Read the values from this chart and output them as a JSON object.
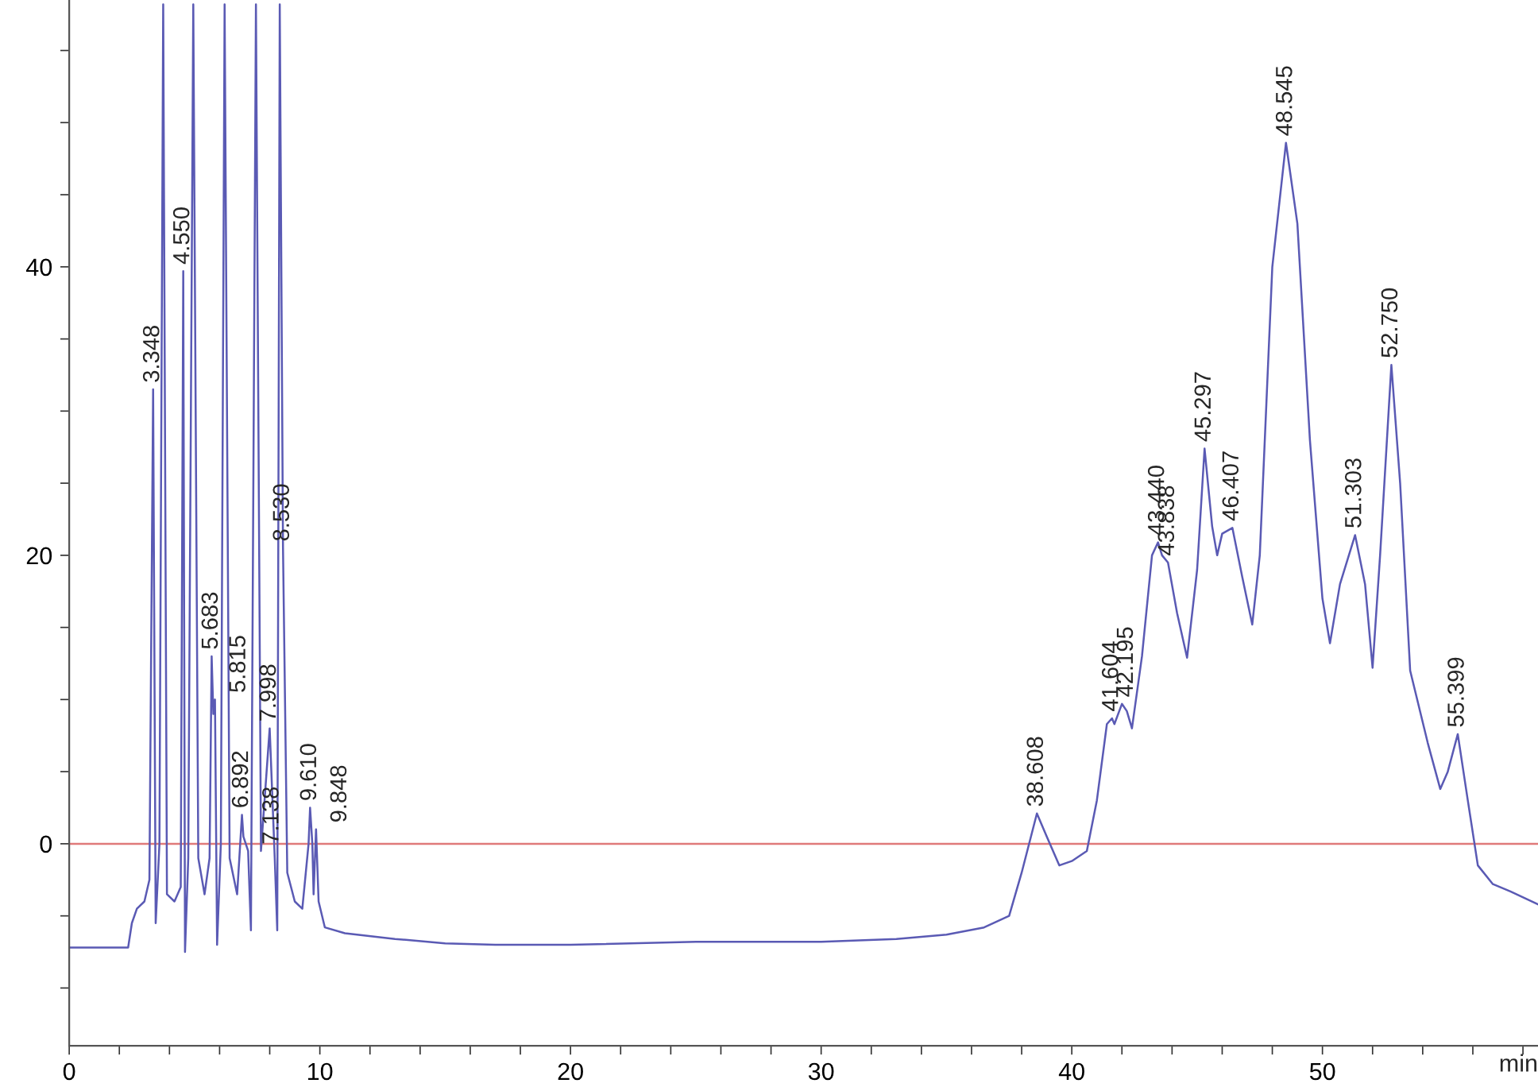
{
  "chart_data": {
    "type": "line",
    "xlabel": "min",
    "x": [
      0,
      2.35,
      2.5,
      2.7,
      3.0,
      3.2,
      3.348,
      3.45,
      3.6,
      3.75,
      3.9,
      4.2,
      4.45,
      4.55,
      4.62,
      4.75,
      4.95,
      5.15,
      5.4,
      5.6,
      5.683,
      5.75,
      5.815,
      5.9,
      6.05,
      6.2,
      6.4,
      6.7,
      6.892,
      6.95,
      7.138,
      7.25,
      7.45,
      7.65,
      7.998,
      8.2,
      8.3,
      8.4,
      8.53,
      8.7,
      9.0,
      9.3,
      9.55,
      9.61,
      9.7,
      9.75,
      9.848,
      9.95,
      10.2,
      11,
      13,
      15,
      17,
      20,
      25,
      30,
      33,
      35,
      36.5,
      37.5,
      38.0,
      38.608,
      39.0,
      39.5,
      40,
      40.6,
      41.0,
      41.4,
      41.604,
      41.7,
      42.0,
      42.195,
      42.4,
      42.8,
      43.2,
      43.44,
      43.6,
      43.838,
      44.2,
      44.6,
      45.0,
      45.297,
      45.6,
      45.8,
      46.0,
      46.407,
      46.8,
      47.2,
      47.5,
      48.0,
      48.545,
      49.0,
      49.5,
      50.0,
      50.3,
      50.7,
      51.303,
      51.7,
      52.0,
      52.3,
      52.75,
      53.1,
      53.5,
      54.2,
      54.7,
      55.0,
      55.399,
      55.8,
      56.2,
      56.8,
      57.5,
      58.6
    ],
    "series": [
      {
        "color": "#5a5ab4",
        "values": [
          -7.2,
          -7.2,
          -5.5,
          -4.5,
          -4.0,
          -2.5,
          31.5,
          -5.5,
          0,
          58.2,
          -3.5,
          -4,
          -3,
          39.7,
          -7.5,
          -1,
          58.2,
          -1,
          -3.5,
          -1,
          13,
          9,
          10,
          -7,
          0,
          58.2,
          -1,
          -3.5,
          2,
          0.5,
          -0.5,
          -6,
          58.2,
          -0.5,
          8,
          -1,
          -6,
          58.2,
          20.5,
          -2,
          -4,
          -4.5,
          0,
          2.5,
          0,
          -3.5,
          1,
          -4,
          -5.8,
          -6.2,
          -6.6,
          -6.9,
          -7.0,
          -7.0,
          -6.8,
          -6.8,
          -6.6,
          -6.3,
          -5.8,
          -5.0,
          -2,
          2.1,
          0.5,
          -1.5,
          -1.2,
          -0.5,
          3,
          8.3,
          8.7,
          8.3,
          9.7,
          9.2,
          8.0,
          13,
          20,
          20.9,
          20,
          19.5,
          16,
          12.9,
          19,
          27.4,
          22,
          20,
          21.5,
          21.9,
          18.5,
          15.2,
          20,
          40,
          48.6,
          43,
          28,
          17,
          13.9,
          18,
          21.4,
          18,
          12.2,
          20,
          33.2,
          25,
          12,
          7,
          3.8,
          5,
          7.6,
          3,
          -1.5,
          -2.8,
          -3.3,
          -4.2
        ]
      }
    ],
    "xlim": [
      0,
      58.6
    ],
    "ylim": [
      -14,
      58.5
    ],
    "xticks": [
      0,
      {
        "value": 2,
        "label": null
      },
      {
        "value": 4,
        "label": null
      },
      {
        "value": 6,
        "label": null
      },
      {
        "value": 8,
        "label": null
      },
      10,
      {
        "value": 12,
        "label": null
      },
      {
        "value": 14,
        "label": null
      },
      {
        "value": 16,
        "label": null
      },
      {
        "value": 18,
        "label": null
      },
      20,
      {
        "value": 22,
        "label": null
      },
      {
        "value": 24,
        "label": null
      },
      {
        "value": 26,
        "label": null
      },
      {
        "value": 28,
        "label": null
      },
      30,
      {
        "value": 32,
        "label": null
      },
      {
        "value": 34,
        "label": null
      },
      {
        "value": 36,
        "label": null
      },
      {
        "value": 38,
        "label": null
      },
      40,
      {
        "value": 42,
        "label": null
      },
      {
        "value": 44,
        "label": null
      },
      {
        "value": 46,
        "label": null
      },
      {
        "value": 48,
        "label": null
      },
      50,
      {
        "value": 52,
        "label": null
      },
      {
        "value": 54,
        "label": null
      },
      {
        "value": 56,
        "label": null
      },
      {
        "value": 58,
        "label": null
      }
    ],
    "yticks": [
      {
        "value": -10,
        "label": null
      },
      {
        "value": -5,
        "label": null
      },
      0,
      {
        "value": 5,
        "label": null
      },
      {
        "value": 10,
        "label": null
      },
      {
        "value": 15,
        "label": null
      },
      20,
      {
        "value": 25,
        "label": null
      },
      {
        "value": 30,
        "label": null
      },
      {
        "value": 35,
        "label": null
      },
      40,
      {
        "value": 45,
        "label": null
      },
      {
        "value": 50,
        "label": null
      },
      {
        "value": 55,
        "label": null
      }
    ],
    "ref_lines": [
      {
        "axis": "y",
        "value": 0,
        "color": "#e07a7a"
      }
    ],
    "grid": false,
    "legend": false,
    "annotations": [
      {
        "text": "3.348",
        "x": 3.348,
        "y": 31.5
      },
      {
        "text": "4.550",
        "x": 4.55,
        "y": 39.7
      },
      {
        "text": "5.683",
        "x": 5.683,
        "y": 13
      },
      {
        "text": "5.815",
        "x": 5.815,
        "y": 10
      },
      {
        "text": "6.892",
        "x": 6.892,
        "y": 2
      },
      {
        "text": "7.138",
        "x": 7.138,
        "y": -0.5
      },
      {
        "text": "7.998",
        "x": 7.998,
        "y": 8
      },
      {
        "text": "8.530",
        "x": 8.53,
        "y": 20.5
      },
      {
        "text": "9.610",
        "x": 9.61,
        "y": 2.5
      },
      {
        "text": "9.848",
        "x": 9.848,
        "y": 1
      },
      {
        "text": "38.608",
        "x": 38.608,
        "y": 2.1
      },
      {
        "text": "41.604",
        "x": 41.604,
        "y": 8.7
      },
      {
        "text": "42.195",
        "x": 42.195,
        "y": 9.7
      },
      {
        "text": "43.440",
        "x": 43.44,
        "y": 20.9
      },
      {
        "text": "43.838",
        "x": 43.838,
        "y": 19.5
      },
      {
        "text": "45.297",
        "x": 45.297,
        "y": 27.4
      },
      {
        "text": "46.407",
        "x": 46.407,
        "y": 21.9
      },
      {
        "text": "48.545",
        "x": 48.545,
        "y": 48.6
      },
      {
        "text": "51.303",
        "x": 51.303,
        "y": 21.4
      },
      {
        "text": "52.750",
        "x": 52.75,
        "y": 33.2
      },
      {
        "text": "55.399",
        "x": 55.399,
        "y": 7.6
      }
    ]
  }
}
